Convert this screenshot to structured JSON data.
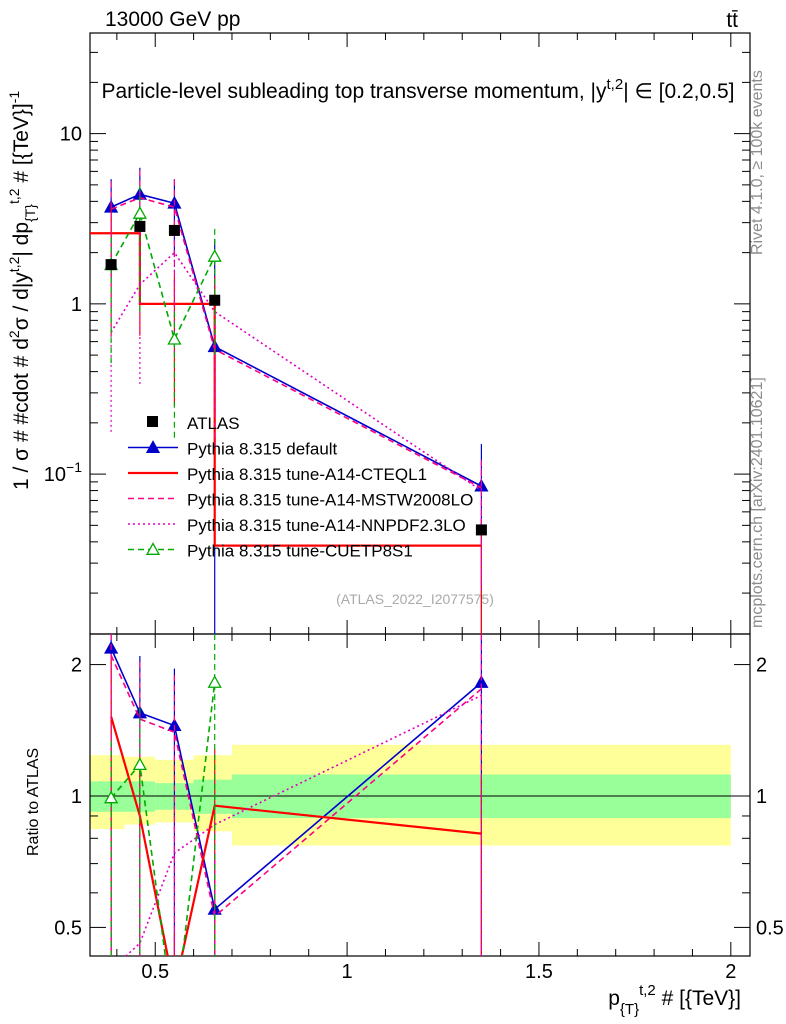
{
  "header": {
    "left": "13000 GeV pp",
    "right": "tt̄"
  },
  "side_text": {
    "upper": "Rivet 4.1.0, ≥ 100k events",
    "lower": "mcplots.cern.ch [arXiv:2401.10621]"
  },
  "chart_data": {
    "type": "line",
    "title": "Particle-level subleading top transverse momentum, |y^{t,2}| ∈ [0.2,0.5]",
    "xlabel": "p_{T}^{t,2} # [{TeV}]",
    "ylabel": "1 / σ # #cdot # d²σ / d|y^{t,2}| dp_{T}^{t,2} # [{TeV}]^{-1}",
    "ratio_ylabel": "Ratio to ATLAS",
    "watermark": "(ATLAS_2022_I2077575)",
    "x_range": [
      0.33,
      2.05
    ],
    "y_range": [
      0.0115,
      39.0
    ],
    "y_scale": "log",
    "ratio_range": [
      0.43,
      2.35
    ],
    "x_ticks": [
      0.5,
      1,
      1.5,
      2
    ],
    "x_tick_labels": [
      "0.5",
      "1",
      "1.5",
      "2"
    ],
    "y_ticks": [
      0.1,
      1,
      10
    ],
    "y_tick_labels": [
      "10^{−1}",
      "1",
      "10"
    ],
    "ratio_ticks": [
      0.5,
      1,
      2
    ],
    "ratio_tick_labels": [
      "0.5",
      "1",
      "2"
    ],
    "data_series": {
      "name": "ATLAS",
      "x": [
        0.385,
        0.46,
        0.55,
        0.655,
        1.35
      ],
      "y": [
        1.7,
        2.85,
        2.7,
        1.05,
        0.047
      ]
    },
    "bands": {
      "edges": [
        0.33,
        0.42,
        0.5,
        0.6,
        0.7,
        2.0
      ],
      "inner_low": [
        0.92,
        0.92,
        0.93,
        0.91,
        0.89
      ],
      "inner_high": [
        1.08,
        1.08,
        1.07,
        1.09,
        1.12
      ],
      "outer_low": [
        0.84,
        0.86,
        0.87,
        0.83,
        0.77
      ],
      "outer_high": [
        1.24,
        1.23,
        1.21,
        1.24,
        1.31
      ]
    },
    "series": [
      {
        "name": "Pythia 8.315 default",
        "color": "#0000cc",
        "style": "solid",
        "marker": "triangle",
        "x": [
          0.385,
          0.46,
          0.55,
          0.655,
          1.35
        ],
        "y": [
          3.7,
          4.4,
          3.9,
          0.56,
          0.085
        ],
        "err_up": [
          5.4,
          6.3,
          5.4,
          2.4,
          0.15
        ],
        "err_lo": [
          1.4,
          2.3,
          1.9,
          0.0115,
          0.0115
        ],
        "ratio": [
          2.18,
          1.55,
          1.45,
          0.55,
          1.82
        ]
      },
      {
        "name": "Pythia 8.315 tune-A14-CTEQL1",
        "color": "#ff0000",
        "style": "solid",
        "marker": "none",
        "step": true,
        "edges": [
          0.33,
          0.385,
          0.46,
          0.55,
          0.655,
          1.35
        ],
        "y": [
          2.6,
          2.6,
          1.0,
          1.0,
          0.038
        ],
        "ratio": [
          1.52,
          0.9,
          0.36,
          0.95,
          0.82
        ]
      },
      {
        "name": "Pythia 8.315 tune-A14-MSTW2008LO",
        "color": "#ff0080",
        "style": "dashed",
        "marker": "none",
        "x": [
          0.385,
          0.46,
          0.55,
          0.655,
          1.35
        ],
        "y": [
          3.6,
          4.2,
          3.7,
          0.54,
          0.083
        ],
        "ratio": [
          2.1,
          1.5,
          1.4,
          0.53,
          1.76
        ]
      },
      {
        "name": "Pythia 8.315 tune-A14-NNPDF2.3LO",
        "color": "#e000c0",
        "style": "dotted",
        "marker": "none",
        "x": [
          0.385,
          0.46,
          0.55,
          0.655,
          1.35
        ],
        "y": [
          0.68,
          1.3,
          2.0,
          0.9,
          0.08
        ],
        "ratio": [
          0.4,
          0.46,
          0.74,
          0.86,
          1.7
        ]
      },
      {
        "name": "Pythia 8.315 tune-CUETP8S1",
        "color": "#00aa00",
        "style": "dashed",
        "marker": "open-triangle",
        "x": [
          0.385,
          0.46,
          0.55,
          0.655
        ],
        "y": [
          1.7,
          3.4,
          0.62,
          1.9
        ],
        "ratio": [
          0.99,
          1.18,
          0.3,
          1.82
        ]
      }
    ]
  }
}
